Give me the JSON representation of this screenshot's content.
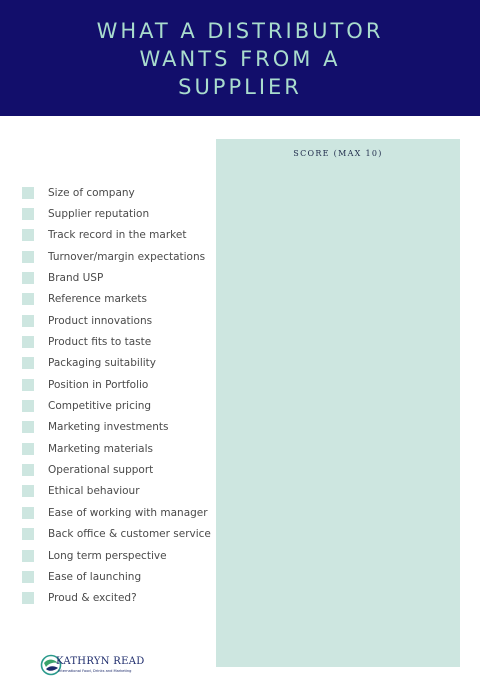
{
  "header": {
    "title_lines": [
      "WHAT A DISTRIBUTOR",
      "WANTS FROM A",
      "SUPPLIER"
    ]
  },
  "score_panel": {
    "label": "SCORE (MAX 10)"
  },
  "criteria": [
    "Size of company",
    "Supplier reputation",
    "Track record in the market",
    "Turnover/margin expectations",
    "Brand USP",
    "Reference markets",
    "Product innovations",
    "Product fits to taste",
    "Packaging suitability",
    "Position in Portfolio",
    "Competitive pricing",
    "Marketing investments",
    "Marketing materials",
    "Operational support",
    "Ethical behaviour",
    "Ease of working with manager",
    "Back office & customer service",
    "Long term perspective",
    "Ease of launching",
    "Proud & excited?"
  ],
  "logo": {
    "name": "KATHRYN READ",
    "tagline": "International Food, Drinks and Marketing"
  },
  "colors": {
    "header_bg": "#120e6b",
    "accent": "#a9dccd",
    "panel": "#cde6e0"
  }
}
